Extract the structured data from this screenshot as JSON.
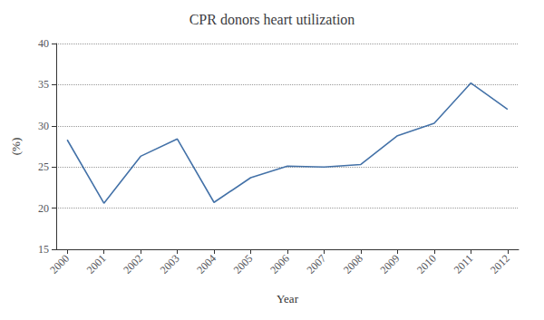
{
  "chart_data": {
    "type": "line",
    "title": "CPR donors heart utilization",
    "xlabel": "Year",
    "ylabel": "(%)",
    "x": [
      2000,
      2001,
      2002,
      2003,
      2004,
      2005,
      2006,
      2007,
      2008,
      2009,
      2010,
      2011,
      2012
    ],
    "values": [
      28.3,
      20.6,
      26.3,
      28.4,
      20.7,
      23.7,
      25.1,
      25.0,
      25.3,
      28.8,
      30.3,
      35.2,
      32.0
    ],
    "color": "#4472a8",
    "xlim": [
      1999.7,
      2012.3
    ],
    "xticks": [
      2000,
      2001,
      2002,
      2003,
      2004,
      2005,
      2006,
      2007,
      2008,
      2009,
      2010,
      2011,
      2012
    ],
    "ylim": [
      15,
      40
    ],
    "yticks": [
      15,
      20,
      25,
      30,
      35,
      40
    ],
    "grid": true
  }
}
